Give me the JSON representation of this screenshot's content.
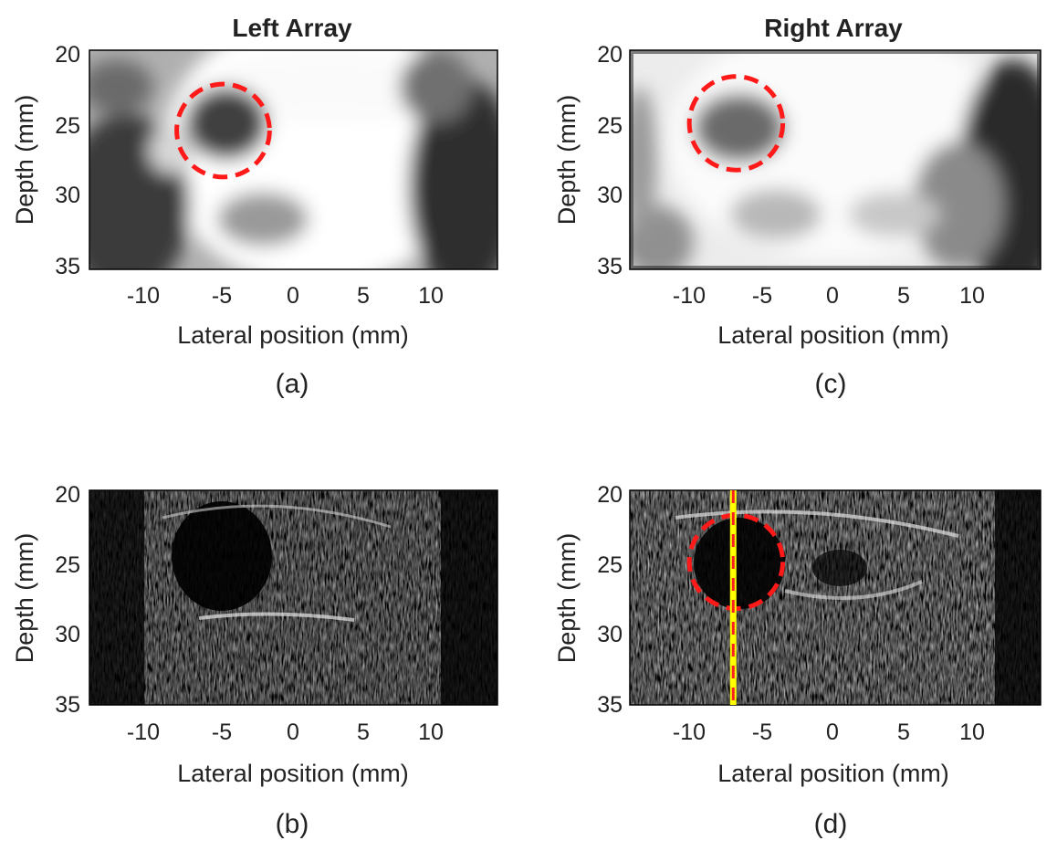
{
  "figure": {
    "panels": [
      {
        "id": "a",
        "caption": "(a)",
        "title": "Left Array",
        "image_type": "grayscale parametric map",
        "xlabel": "Lateral position (mm)",
        "ylabel": "Depth (mm)",
        "xticks": [
          "-10",
          "-5",
          "0",
          "5",
          "10"
        ],
        "yticks": [
          "20",
          "25",
          "30",
          "35"
        ],
        "circle": {
          "cx_mm": -5,
          "cy_mm": 25.5,
          "r_mm": 3.3
        }
      },
      {
        "id": "b",
        "caption": "(b)",
        "title": "",
        "image_type": "b-mode ultrasound",
        "xlabel": "Lateral position (mm)",
        "ylabel": "Depth (mm)",
        "xticks": [
          "-10",
          "-5",
          "0",
          "5",
          "10"
        ],
        "yticks": [
          "20",
          "25",
          "30",
          "35"
        ]
      },
      {
        "id": "c",
        "caption": "(c)",
        "title": "Right Array",
        "image_type": "grayscale parametric map",
        "xlabel": "Lateral position (mm)",
        "ylabel": "Depth (mm)",
        "xticks": [
          "-10",
          "-5",
          "0",
          "5",
          "10"
        ],
        "yticks": [
          "20",
          "25",
          "30",
          "35"
        ],
        "circle": {
          "cx_mm": -7,
          "cy_mm": 25,
          "r_mm": 3.3
        }
      },
      {
        "id": "d",
        "caption": "(d)",
        "title": "",
        "image_type": "b-mode ultrasound",
        "xlabel": "Lateral position (mm)",
        "ylabel": "Depth (mm)",
        "xticks": [
          "-10",
          "-5",
          "0",
          "5",
          "10"
        ],
        "yticks": [
          "20",
          "25",
          "30",
          "35"
        ],
        "circle": {
          "cx_mm": -7,
          "cy_mm": 25,
          "r_mm": 3.3
        },
        "vertical_line_x_mm": -7.2
      }
    ],
    "x_range_mm": [
      -14.5,
      14.5
    ],
    "y_range_mm": [
      20,
      35
    ],
    "colors": {
      "circle": "#ff1a1a",
      "line_outer": "#ffff00",
      "line_inner": "#ff2020"
    }
  }
}
